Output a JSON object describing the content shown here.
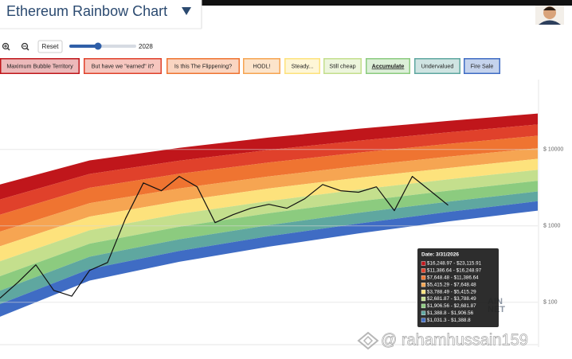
{
  "chart_data": {
    "type": "rainbow",
    "title": "Ethereum Rainbow Chart",
    "log_scale": true,
    "grid": true,
    "categories": [
      null,
      null,
      null,
      null,
      null,
      null,
      null
    ],
    "ylim": [
      25,
      80000
    ],
    "yticks": [
      {
        "value": 10000,
        "label": "$ 10000"
      },
      {
        "value": 1000,
        "label": "$ 1000"
      },
      {
        "value": 100,
        "label": "$ 100"
      }
    ],
    "selected_band": 6,
    "series": [
      {
        "name": "Maximum Bubble Territory",
        "color": "#c0161b",
        "values": [
          3470,
          7190,
          10500,
          14300,
          18600,
          23600,
          29500
        ]
      },
      {
        "name": "But have we \"earned\" it?",
        "color": "#e0412b",
        "values": [
          2210,
          4780,
          7110,
          9840,
          13000,
          16700,
          21200
        ]
      },
      {
        "name": "Is this The Flippening?",
        "color": "#ef7431",
        "values": [
          1400,
          3150,
          4800,
          6750,
          9060,
          11800,
          15100
        ]
      },
      {
        "name": "HODL!",
        "color": "#f6a552",
        "values": [
          839,
          1980,
          3090,
          4430,
          6050,
          8020,
          10400
        ]
      },
      {
        "name": "Steady...",
        "color": "#fde27c",
        "values": [
          540,
          1320,
          2110,
          3080,
          4270,
          5710,
          7530
        ]
      },
      {
        "name": "Still cheap",
        "color": "#c4df8d",
        "values": [
          343,
          877,
          1430,
          2110,
          2980,
          4050,
          5400
        ]
      },
      {
        "name": "Accumulate",
        "color": "#8ccb7f",
        "values": [
          219,
          585,
          971,
          1460,
          2090,
          2880,
          3890
        ]
      },
      {
        "name": "Undervalued",
        "color": "#5fa7a0",
        "values": [
          142,
          394,
          667,
          1020,
          1480,
          2070,
          2820
        ]
      },
      {
        "name": "Fire Sale",
        "color": "#3f6cc4",
        "values": [
          94.6,
          272,
          470,
          731,
          1070,
          1520,
          2100
        ]
      }
    ],
    "floor": [
      64.6,
      192,
      338,
      533,
      794,
      1140,
      1580
    ],
    "price": {
      "color": "#111111",
      "x": [
        0,
        0.2,
        0.4,
        0.6,
        0.8,
        1,
        1.2,
        1.4,
        1.6,
        1.8,
        2,
        2.2,
        2.4,
        2.6,
        2.8,
        3,
        3.2,
        3.4,
        3.6,
        3.8,
        4,
        4.2,
        4.4,
        4.6,
        4.8,
        5
      ],
      "values": [
        113,
        182,
        309,
        143,
        120,
        261,
        331,
        1240,
        3640,
        2880,
        4430,
        3240,
        1100,
        1400,
        1700,
        1910,
        1700,
        2260,
        3470,
        2880,
        2750,
        3240,
        1580,
        4430,
        2880,
        1860
      ]
    },
    "tooltip": {
      "title": "Date: 3/31/2026",
      "rows": [
        "$16,248.97 - $23,115.91",
        "$11,386.64 - $16,248.97",
        "$7,648.48 - $11,386.64",
        "$5,415.29 - $7,648.48",
        "$3,788.49 - $5,415.29",
        "$2,681.87 - $3,788.49",
        "$1,906.56 - $2,681.87",
        "$1,388.8 - $1,906.56",
        "$1,031.3 - $1,388.8"
      ]
    }
  },
  "controls": {
    "reset": "Reset",
    "slider_label": "2028"
  },
  "watermark": {
    "text": "@ rahamhussain159",
    "logo": [
      "AIN",
      "NET"
    ]
  }
}
